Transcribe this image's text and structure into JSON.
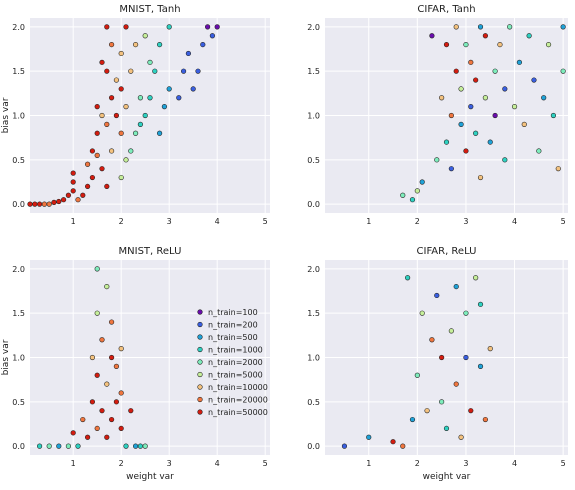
{
  "legend_entries": [
    "n_train=100",
    "n_train=200",
    "n_train=500",
    "n_train=1000",
    "n_train=2000",
    "n_train=5000",
    "n_train=10000",
    "n_train=20000",
    "n_train=50000"
  ],
  "legend_colors": [
    "#6a0dad",
    "#3a5fe0",
    "#1fa2d8",
    "#2ed1c1",
    "#7eedbc",
    "#c6ef9a",
    "#f4c27f",
    "#f0763f",
    "#d41c10"
  ],
  "chart_data": [
    {
      "type": "scatter",
      "title": "MNIST, Tanh",
      "xlabel": "",
      "ylabel": "bias var",
      "xlim": [
        0.1,
        5.1
      ],
      "ylim": [
        -0.1,
        2.1
      ],
      "xticks": [
        "1",
        "2",
        "3",
        "4",
        "5"
      ],
      "yticks": [
        "0.0",
        "0.5",
        "1.0",
        "1.5",
        "2.0"
      ],
      "grid": true,
      "legend": false,
      "points": [
        [
          0.1,
          0,
          8
        ],
        [
          0.2,
          0,
          8
        ],
        [
          0.3,
          0,
          8
        ],
        [
          0.4,
          0,
          7
        ],
        [
          0.5,
          0,
          7
        ],
        [
          0.6,
          0.02,
          8
        ],
        [
          0.7,
          0.03,
          8
        ],
        [
          0.8,
          0.05,
          8
        ],
        [
          0.9,
          0.1,
          8
        ],
        [
          1.0,
          0.15,
          8
        ],
        [
          1.0,
          0.25,
          8
        ],
        [
          1.0,
          0.35,
          8
        ],
        [
          1.1,
          0.05,
          7
        ],
        [
          1.2,
          0.1,
          8
        ],
        [
          1.3,
          0.2,
          8
        ],
        [
          1.3,
          0.45,
          7
        ],
        [
          1.4,
          0.3,
          8
        ],
        [
          1.4,
          0.6,
          8
        ],
        [
          1.5,
          0.55,
          7
        ],
        [
          1.5,
          0.8,
          8
        ],
        [
          1.5,
          1.1,
          8
        ],
        [
          1.6,
          0.4,
          8
        ],
        [
          1.6,
          1.0,
          6
        ],
        [
          1.6,
          1.6,
          8
        ],
        [
          1.7,
          0.2,
          8
        ],
        [
          1.7,
          0.9,
          7
        ],
        [
          1.7,
          1.5,
          8
        ],
        [
          1.7,
          2.0,
          8
        ],
        [
          1.8,
          0.6,
          6
        ],
        [
          1.8,
          1.2,
          8
        ],
        [
          1.8,
          1.8,
          7
        ],
        [
          1.9,
          1.0,
          8
        ],
        [
          1.9,
          1.4,
          6
        ],
        [
          2.0,
          0.3,
          5
        ],
        [
          2.0,
          0.8,
          7
        ],
        [
          2.0,
          1.3,
          8
        ],
        [
          2.0,
          1.7,
          6
        ],
        [
          2.1,
          0.5,
          5
        ],
        [
          2.1,
          1.1,
          6
        ],
        [
          2.1,
          2.0,
          8
        ],
        [
          2.2,
          0.6,
          4
        ],
        [
          2.2,
          1.5,
          6
        ],
        [
          2.3,
          0.8,
          4
        ],
        [
          2.3,
          1.8,
          6
        ],
        [
          2.4,
          0.9,
          3
        ],
        [
          2.4,
          1.2,
          4
        ],
        [
          2.5,
          1.0,
          3
        ],
        [
          2.5,
          1.9,
          5
        ],
        [
          2.6,
          1.2,
          3
        ],
        [
          2.6,
          1.6,
          4
        ],
        [
          2.7,
          1.5,
          3
        ],
        [
          2.8,
          0.8,
          2
        ],
        [
          2.8,
          1.8,
          3
        ],
        [
          2.9,
          1.1,
          2
        ],
        [
          3.0,
          1.3,
          2
        ],
        [
          3.0,
          2.0,
          3
        ],
        [
          3.2,
          1.2,
          1
        ],
        [
          3.3,
          1.5,
          1
        ],
        [
          3.4,
          1.7,
          1
        ],
        [
          3.5,
          1.3,
          1
        ],
        [
          3.6,
          1.5,
          1
        ],
        [
          3.7,
          1.8,
          1
        ],
        [
          3.8,
          2.0,
          0
        ],
        [
          3.9,
          1.9,
          1
        ],
        [
          4.0,
          2.0,
          0
        ]
      ]
    },
    {
      "type": "scatter",
      "title": "CIFAR, Tanh",
      "xlabel": "",
      "ylabel": "",
      "xlim": [
        0.1,
        5.1
      ],
      "ylim": [
        -0.1,
        2.1
      ],
      "xticks": [
        "1",
        "2",
        "3",
        "4",
        "5"
      ],
      "yticks": [
        "0.0",
        "0.5",
        "1.0",
        "1.5",
        "2.0"
      ],
      "grid": true,
      "legend": false,
      "points": [
        [
          1.7,
          0.1,
          4
        ],
        [
          1.9,
          0.05,
          3
        ],
        [
          2.0,
          0.15,
          5
        ],
        [
          2.1,
          0.25,
          2
        ],
        [
          2.3,
          1.9,
          0
        ],
        [
          2.4,
          0.5,
          4
        ],
        [
          2.5,
          1.2,
          6
        ],
        [
          2.6,
          0.7,
          3
        ],
        [
          2.6,
          1.8,
          8
        ],
        [
          2.7,
          0.4,
          1
        ],
        [
          2.7,
          1.0,
          7
        ],
        [
          2.8,
          1.5,
          8
        ],
        [
          2.8,
          2.0,
          6
        ],
        [
          2.9,
          0.9,
          2
        ],
        [
          2.9,
          1.3,
          5
        ],
        [
          3.0,
          0.6,
          8
        ],
        [
          3.0,
          1.8,
          4
        ],
        [
          3.1,
          1.1,
          1
        ],
        [
          3.1,
          1.6,
          7
        ],
        [
          3.2,
          0.8,
          3
        ],
        [
          3.2,
          1.4,
          8
        ],
        [
          3.3,
          0.3,
          6
        ],
        [
          3.3,
          2.0,
          2
        ],
        [
          3.4,
          1.2,
          5
        ],
        [
          3.4,
          1.9,
          8
        ],
        [
          3.5,
          0.7,
          2
        ],
        [
          3.6,
          1.5,
          4
        ],
        [
          3.6,
          1.0,
          0
        ],
        [
          3.7,
          1.8,
          6
        ],
        [
          3.8,
          0.5,
          3
        ],
        [
          3.8,
          1.3,
          1
        ],
        [
          3.9,
          2.0,
          4
        ],
        [
          4.0,
          1.1,
          5
        ],
        [
          4.1,
          1.6,
          2
        ],
        [
          4.2,
          0.9,
          6
        ],
        [
          4.3,
          1.9,
          3
        ],
        [
          4.4,
          1.4,
          1
        ],
        [
          4.5,
          0.6,
          4
        ],
        [
          4.6,
          1.2,
          2
        ],
        [
          4.7,
          1.8,
          5
        ],
        [
          4.8,
          1.0,
          3
        ],
        [
          4.9,
          0.4,
          6
        ],
        [
          5.0,
          1.5,
          4
        ],
        [
          5.0,
          2.0,
          2
        ]
      ]
    },
    {
      "type": "scatter",
      "title": "MNIST, ReLU",
      "xlabel": "weight var",
      "ylabel": "bias var",
      "xlim": [
        0.1,
        5.1
      ],
      "ylim": [
        -0.1,
        2.1
      ],
      "xticks": [
        "1",
        "2",
        "3",
        "4",
        "5"
      ],
      "yticks": [
        "0.0",
        "0.5",
        "1.0",
        "1.5",
        "2.0"
      ],
      "grid": true,
      "legend": true,
      "points": [
        [
          0.3,
          0,
          3
        ],
        [
          0.5,
          0,
          4
        ],
        [
          0.7,
          0,
          2
        ],
        [
          0.9,
          0,
          4
        ],
        [
          1.0,
          0.15,
          8
        ],
        [
          1.1,
          0,
          3
        ],
        [
          1.2,
          0.3,
          7
        ],
        [
          1.3,
          0.1,
          8
        ],
        [
          1.4,
          0.5,
          8
        ],
        [
          1.4,
          1.0,
          6
        ],
        [
          1.5,
          0.2,
          7
        ],
        [
          1.5,
          0.8,
          8
        ],
        [
          1.5,
          1.5,
          5
        ],
        [
          1.5,
          2.0,
          4
        ],
        [
          1.6,
          0.4,
          8
        ],
        [
          1.6,
          1.2,
          7
        ],
        [
          1.7,
          0.1,
          8
        ],
        [
          1.7,
          0.7,
          6
        ],
        [
          1.7,
          1.8,
          5
        ],
        [
          1.8,
          0.3,
          8
        ],
        [
          1.8,
          1.0,
          8
        ],
        [
          1.8,
          1.4,
          7
        ],
        [
          1.9,
          0.5,
          8
        ],
        [
          1.9,
          0.9,
          7
        ],
        [
          2.0,
          0.2,
          8
        ],
        [
          2.0,
          0.6,
          7
        ],
        [
          2.0,
          1.1,
          6
        ],
        [
          2.1,
          0,
          3
        ],
        [
          2.2,
          0.4,
          8
        ],
        [
          2.3,
          0,
          2
        ],
        [
          2.4,
          0,
          3
        ],
        [
          2.5,
          0,
          4
        ]
      ]
    },
    {
      "type": "scatter",
      "title": "CIFAR, ReLU",
      "xlabel": "weight var",
      "ylabel": "",
      "xlim": [
        0.1,
        5.1
      ],
      "ylim": [
        -0.1,
        2.1
      ],
      "xticks": [
        "1",
        "2",
        "3",
        "4",
        "5"
      ],
      "yticks": [
        "0.0",
        "0.5",
        "1.0",
        "1.5",
        "2.0"
      ],
      "grid": true,
      "legend": false,
      "points": [
        [
          0.5,
          0,
          1
        ],
        [
          1.0,
          0.1,
          2
        ],
        [
          1.5,
          0.05,
          8
        ],
        [
          1.7,
          0,
          7
        ],
        [
          1.8,
          1.9,
          3
        ],
        [
          1.9,
          0.3,
          2
        ],
        [
          2.0,
          0.8,
          4
        ],
        [
          2.1,
          1.5,
          5
        ],
        [
          2.2,
          0.4,
          6
        ],
        [
          2.3,
          1.2,
          7
        ],
        [
          2.4,
          1.7,
          1
        ],
        [
          2.5,
          0.5,
          4
        ],
        [
          2.5,
          1.0,
          8
        ],
        [
          2.6,
          0.2,
          3
        ],
        [
          2.7,
          1.3,
          5
        ],
        [
          2.8,
          0.7,
          7
        ],
        [
          2.8,
          1.8,
          2
        ],
        [
          2.9,
          0.1,
          6
        ],
        [
          3.0,
          1.0,
          1
        ],
        [
          3.0,
          1.5,
          4
        ],
        [
          3.1,
          0.4,
          8
        ],
        [
          3.2,
          1.9,
          5
        ],
        [
          3.3,
          0.9,
          2
        ],
        [
          3.3,
          1.6,
          3
        ],
        [
          3.4,
          0.3,
          7
        ],
        [
          3.5,
          1.1,
          6
        ]
      ]
    }
  ]
}
